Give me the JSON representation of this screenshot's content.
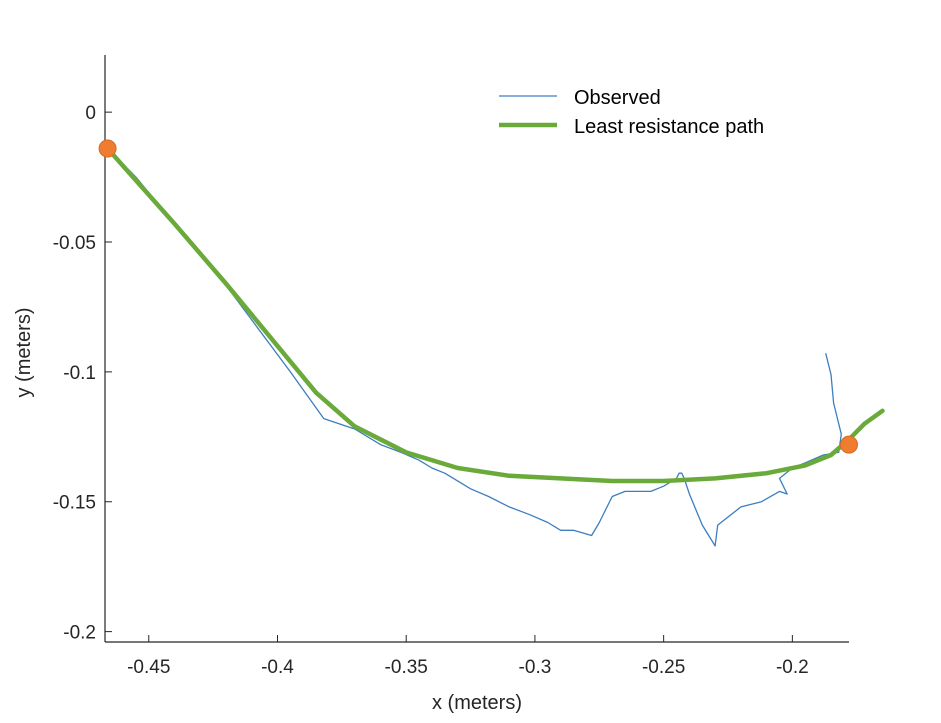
{
  "chart_data": {
    "type": "line",
    "title": "",
    "xlabel": "x (meters)",
    "ylabel": "y (meters)",
    "xlim": [
      -0.467,
      -0.178
    ],
    "ylim": [
      -0.204,
      0.022
    ],
    "xticks": [
      -0.45,
      -0.4,
      -0.35,
      -0.3,
      -0.25,
      -0.2
    ],
    "xtick_labels": [
      "-0.45",
      "-0.4",
      "-0.35",
      "-0.3",
      "-0.25",
      "-0.2"
    ],
    "yticks": [
      0,
      -0.05,
      -0.1,
      -0.15,
      -0.2
    ],
    "ytick_labels": [
      "0",
      "-0.05",
      "-0.1",
      "-0.15",
      "-0.2"
    ],
    "grid": false,
    "legend_position": "top-right",
    "series": [
      {
        "name": "Observed",
        "color": "#3c7ec0",
        "x": [
          -0.466,
          -0.455,
          -0.44,
          -0.425,
          -0.41,
          -0.395,
          -0.382,
          -0.37,
          -0.36,
          -0.352,
          -0.345,
          -0.34,
          -0.335,
          -0.325,
          -0.318,
          -0.31,
          -0.302,
          -0.295,
          -0.29,
          -0.285,
          -0.278,
          -0.275,
          -0.27,
          -0.265,
          -0.26,
          -0.255,
          -0.25,
          -0.245,
          -0.244,
          -0.243,
          -0.242,
          -0.24,
          -0.235,
          -0.23,
          -0.229,
          -0.22,
          -0.212,
          -0.205,
          -0.202,
          -0.205,
          -0.2,
          -0.195,
          -0.188,
          -0.182,
          -0.181,
          -0.184,
          -0.185,
          -0.187
        ],
        "y": [
          -0.014,
          -0.025,
          -0.043,
          -0.06,
          -0.08,
          -0.1,
          -0.118,
          -0.122,
          -0.128,
          -0.131,
          -0.134,
          -0.137,
          -0.139,
          -0.145,
          -0.148,
          -0.152,
          -0.155,
          -0.158,
          -0.161,
          -0.161,
          -0.163,
          -0.158,
          -0.148,
          -0.146,
          -0.146,
          -0.146,
          -0.144,
          -0.141,
          -0.139,
          -0.139,
          -0.141,
          -0.147,
          -0.159,
          -0.167,
          -0.159,
          -0.152,
          -0.15,
          -0.146,
          -0.147,
          -0.141,
          -0.137,
          -0.135,
          -0.132,
          -0.131,
          -0.124,
          -0.112,
          -0.101,
          -0.093
        ]
      },
      {
        "name": "Least resistance path",
        "color": "#6aaa3a",
        "x": [
          -0.466,
          -0.44,
          -0.42,
          -0.4,
          -0.385,
          -0.37,
          -0.35,
          -0.33,
          -0.31,
          -0.29,
          -0.27,
          -0.25,
          -0.23,
          -0.21,
          -0.195,
          -0.185,
          -0.178,
          -0.172,
          -0.165
        ],
        "y": [
          -0.014,
          -0.043,
          -0.066,
          -0.09,
          -0.108,
          -0.121,
          -0.131,
          -0.137,
          -0.14,
          -0.141,
          -0.142,
          -0.142,
          -0.141,
          -0.139,
          -0.136,
          -0.132,
          -0.126,
          -0.12,
          -0.115
        ]
      }
    ],
    "markers": {
      "color": "#ef7d30",
      "x": [
        -0.466,
        -0.178
      ],
      "y": [
        -0.014,
        -0.128
      ]
    }
  }
}
